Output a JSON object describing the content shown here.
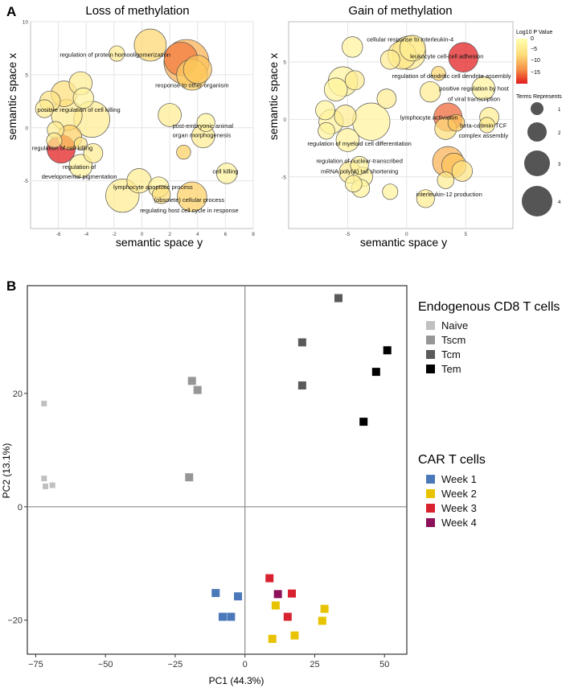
{
  "panels": {
    "A": "A",
    "B": "B"
  },
  "colors": {
    "bubble_low": "#ffffb2",
    "bubble_mid": "#fecc5c",
    "bubble_high": "#e31a1c",
    "bubble_stroke": "#555555",
    "panel_bg": "#ffffff",
    "grid": "#e4e4e4",
    "size_legend_fill": "#555555"
  },
  "chart_data": [
    {
      "id": "loss",
      "type": "scatter",
      "title": "Loss of methylation",
      "xlabel": "semantic space y",
      "ylabel": "semantic space x",
      "xlim": [
        -8,
        8
      ],
      "ylim": [
        -9.5,
        10
      ],
      "xticks": [
        -6,
        -4,
        -2,
        0,
        2,
        4,
        6,
        8
      ],
      "yticks": [
        -5,
        0,
        5,
        10
      ],
      "points": [
        {
          "x": 0.6,
          "y": 7.8,
          "size": 2.5,
          "p": -6
        },
        {
          "x": -1.8,
          "y": 7.0,
          "size": 1.2,
          "p": -3
        },
        {
          "x": 3.2,
          "y": 6.2,
          "size": 3.5,
          "p": -9
        },
        {
          "x": 2.8,
          "y": 6.5,
          "size": 2.6,
          "p": -12
        },
        {
          "x": 4.0,
          "y": 5.5,
          "size": 2.2,
          "p": -8
        },
        {
          "x": 3.6,
          "y": 5.0,
          "size": 2.4,
          "p": -7
        },
        {
          "x": -4.4,
          "y": 4.2,
          "size": 1.8,
          "p": -3
        },
        {
          "x": -6.6,
          "y": 2.5,
          "size": 1.6,
          "p": -4
        },
        {
          "x": -5.6,
          "y": 3.2,
          "size": 2.0,
          "p": -5
        },
        {
          "x": -7.0,
          "y": 1.8,
          "size": 1.4,
          "p": -3
        },
        {
          "x": -5.4,
          "y": 1.2,
          "size": 2.4,
          "p": -3
        },
        {
          "x": -3.6,
          "y": 0.8,
          "size": 2.8,
          "p": -3
        },
        {
          "x": -4.2,
          "y": 2.8,
          "size": 1.6,
          "p": -2
        },
        {
          "x": -6.2,
          "y": -0.2,
          "size": 1.3,
          "p": -3
        },
        {
          "x": -5.8,
          "y": -2.0,
          "size": 2.2,
          "p": -17
        },
        {
          "x": -5.2,
          "y": -0.9,
          "size": 1.9,
          "p": -7
        },
        {
          "x": -4.4,
          "y": -3.6,
          "size": 1.8,
          "p": -2
        },
        {
          "x": -3.5,
          "y": -2.4,
          "size": 1.5,
          "p": -3
        },
        {
          "x": -6.3,
          "y": -1.2,
          "size": 1.2,
          "p": -3
        },
        {
          "x": 2.0,
          "y": 1.2,
          "size": 1.8,
          "p": -3
        },
        {
          "x": 4.6,
          "y": 0.5,
          "size": 1.4,
          "p": -2
        },
        {
          "x": 4.4,
          "y": -0.8,
          "size": 1.8,
          "p": -3
        },
        {
          "x": 3.0,
          "y": -2.3,
          "size": 1.1,
          "p": -7
        },
        {
          "x": 6.1,
          "y": -4.3,
          "size": 1.6,
          "p": -2
        },
        {
          "x": -0.2,
          "y": -5.0,
          "size": 1.9,
          "p": -3
        },
        {
          "x": 1.2,
          "y": -5.6,
          "size": 1.6,
          "p": -2
        },
        {
          "x": 1.4,
          "y": -6.3,
          "size": 1.4,
          "p": -5
        },
        {
          "x": -1.4,
          "y": -6.4,
          "size": 2.6,
          "p": -3
        },
        {
          "x": 3.6,
          "y": -6.5,
          "size": 2.3,
          "p": -7
        },
        {
          "x": -4.4,
          "y": -1.5,
          "size": 1.0,
          "p": -4
        }
      ],
      "labels": [
        {
          "text": "regulation of protein homooligomerization",
          "x": -5.9,
          "y": 6.7,
          "align": "start"
        },
        {
          "text": "response to other organism",
          "x": 3.6,
          "y": 3.8,
          "align": "middle"
        },
        {
          "text": "positive regulation of cell killing",
          "x": -7.5,
          "y": 1.5,
          "align": "start"
        },
        {
          "text": "post-embryonic animal",
          "x": 2.2,
          "y": 0.0,
          "align": "start"
        },
        {
          "text": "organ morphogenesis",
          "x": 2.2,
          "y": -0.9,
          "align": "start"
        },
        {
          "text": "regulation of cell killing",
          "x": -7.9,
          "y": -2.1,
          "align": "start"
        },
        {
          "text": "regulation of",
          "x": -4.5,
          "y": -3.9,
          "align": "middle"
        },
        {
          "text": "developmental pigmentation",
          "x": -4.5,
          "y": -4.8,
          "align": "middle"
        },
        {
          "text": "cell killing",
          "x": 6.0,
          "y": -4.3,
          "align": "middle"
        },
        {
          "text": "lymphocyte apoptotic process",
          "x": 0.8,
          "y": -5.8,
          "align": "middle"
        },
        {
          "text": "(obsolete) cellular process",
          "x": 3.4,
          "y": -7.0,
          "align": "middle"
        },
        {
          "text": "regulating host cell cycle in response",
          "x": 3.4,
          "y": -8.0,
          "align": "middle"
        }
      ]
    },
    {
      "id": "gain",
      "type": "scatter",
      "title": "Gain of methylation",
      "xlabel": "semantic space y",
      "ylabel": "semantic space x",
      "xlim": [
        -10,
        9
      ],
      "ylim": [
        -9.5,
        8.5
      ],
      "xticks": [
        -5,
        0,
        5
      ],
      "yticks": [
        -5,
        0,
        5
      ],
      "points": [
        {
          "x": -4.6,
          "y": 6.3,
          "size": 1.6,
          "p": -2
        },
        {
          "x": 0.5,
          "y": 6.2,
          "size": 2.0,
          "p": -3
        },
        {
          "x": -1.4,
          "y": 5.2,
          "size": 1.5,
          "p": -3
        },
        {
          "x": -0.4,
          "y": 5.6,
          "size": 2.2,
          "p": -4
        },
        {
          "x": 0.2,
          "y": 5.8,
          "size": 2.6,
          "p": -3
        },
        {
          "x": 4.8,
          "y": 5.4,
          "size": 2.3,
          "p": -17
        },
        {
          "x": 2.7,
          "y": 4.0,
          "size": 1.1,
          "p": -6
        },
        {
          "x": -5.4,
          "y": 3.3,
          "size": 2.3,
          "p": -2
        },
        {
          "x": -6.0,
          "y": 2.6,
          "size": 1.8,
          "p": -2
        },
        {
          "x": -4.4,
          "y": 3.4,
          "size": 1.5,
          "p": -3
        },
        {
          "x": -1.7,
          "y": 1.8,
          "size": 1.5,
          "p": -3
        },
        {
          "x": 2.0,
          "y": 2.4,
          "size": 1.6,
          "p": -3
        },
        {
          "x": 6.5,
          "y": 2.7,
          "size": 1.8,
          "p": -2
        },
        {
          "x": -6.9,
          "y": 0.8,
          "size": 1.5,
          "p": -2
        },
        {
          "x": -6.4,
          "y": -0.2,
          "size": 1.9,
          "p": -2
        },
        {
          "x": -5.2,
          "y": 0.3,
          "size": 1.7,
          "p": -3
        },
        {
          "x": -3.0,
          "y": -0.2,
          "size": 2.9,
          "p": -2
        },
        {
          "x": -5.0,
          "y": -1.8,
          "size": 1.8,
          "p": -2
        },
        {
          "x": -6.8,
          "y": -1.0,
          "size": 1.3,
          "p": -2
        },
        {
          "x": 3.5,
          "y": 0.2,
          "size": 2.2,
          "p": -13
        },
        {
          "x": 3.3,
          "y": -0.8,
          "size": 1.7,
          "p": -5
        },
        {
          "x": 4.2,
          "y": -0.3,
          "size": 1.3,
          "p": -8
        },
        {
          "x": 7.0,
          "y": 0.2,
          "size": 1.5,
          "p": -3
        },
        {
          "x": 6.8,
          "y": -0.5,
          "size": 1.2,
          "p": -3
        },
        {
          "x": -4.0,
          "y": -4.0,
          "size": 1.4,
          "p": -2
        },
        {
          "x": -4.8,
          "y": -4.6,
          "size": 1.7,
          "p": -3
        },
        {
          "x": -3.7,
          "y": -5.0,
          "size": 1.5,
          "p": -2
        },
        {
          "x": -4.5,
          "y": -5.6,
          "size": 1.3,
          "p": -2
        },
        {
          "x": -3.9,
          "y": -6.0,
          "size": 1.4,
          "p": -2
        },
        {
          "x": 3.5,
          "y": -3.7,
          "size": 2.4,
          "p": -9
        },
        {
          "x": 4.0,
          "y": -4.0,
          "size": 1.9,
          "p": -8
        },
        {
          "x": 4.7,
          "y": -4.5,
          "size": 1.6,
          "p": -4
        },
        {
          "x": 3.3,
          "y": -5.3,
          "size": 1.3,
          "p": -3
        },
        {
          "x": 1.6,
          "y": -6.9,
          "size": 1.4,
          "p": -3
        },
        {
          "x": -1.4,
          "y": -6.3,
          "size": 1.2,
          "p": -2
        }
      ],
      "labels": [
        {
          "text": "cellular response to interleukin-4",
          "x": 0.3,
          "y": 6.8,
          "align": "middle"
        },
        {
          "text": "leukocyte cell-cell adhesion",
          "x": 3.4,
          "y": 5.3,
          "align": "middle"
        },
        {
          "text": "regulation of dendritic cell dendrite assembly",
          "x": 3.8,
          "y": 3.6,
          "align": "middle"
        },
        {
          "text": "positive regulation by host",
          "x": 5.7,
          "y": 2.5,
          "align": "middle"
        },
        {
          "text": "of viral transcription",
          "x": 5.7,
          "y": 1.6,
          "align": "middle"
        },
        {
          "text": "lymphocyte activation",
          "x": 1.9,
          "y": 0.0,
          "align": "middle"
        },
        {
          "text": "beta-catenin-TCF",
          "x": 6.5,
          "y": -0.7,
          "align": "middle"
        },
        {
          "text": "complex assembly",
          "x": 6.5,
          "y": -1.6,
          "align": "middle"
        },
        {
          "text": "regulation of myeloid cell differentiation",
          "x": -4.0,
          "y": -2.3,
          "align": "middle"
        },
        {
          "text": "regulation of nuclear-transcribed",
          "x": -4.0,
          "y": -3.8,
          "align": "middle"
        },
        {
          "text": "mRNA poly(A) tail shortening",
          "x": -4.0,
          "y": -4.7,
          "align": "middle"
        },
        {
          "text": "interleukin-12 production",
          "x": 3.6,
          "y": -6.7,
          "align": "middle"
        }
      ]
    },
    {
      "id": "pca",
      "type": "scatter",
      "title": "",
      "xlabel": "PC1 (44.3%)",
      "ylabel": "PC2 (13.1%)",
      "xlim": [
        -78,
        58
      ],
      "ylim": [
        -26,
        39
      ],
      "xticks": [
        -75,
        -50,
        -25,
        0,
        25,
        50
      ],
      "yticks": [
        -20,
        0,
        20
      ],
      "series": [
        {
          "name": "Naive",
          "group": "endogenous",
          "color": "#c0c0c0",
          "points": [
            [
              -72,
              18.2
            ],
            [
              -72,
              5
            ],
            [
              -71.5,
              3.6
            ],
            [
              -69,
              3.8
            ]
          ]
        },
        {
          "name": "Tscm",
          "group": "endogenous",
          "color": "#969696",
          "points": [
            [
              -19,
              22.2
            ],
            [
              -17,
              20.6
            ],
            [
              -20,
              5.2
            ]
          ]
        },
        {
          "name": "Tcm",
          "group": "endogenous",
          "color": "#5a5a5a",
          "points": [
            [
              33.5,
              36.8
            ],
            [
              20.5,
              29
            ],
            [
              20.5,
              21.4
            ]
          ]
        },
        {
          "name": "Tem",
          "group": "endogenous",
          "color": "#000000",
          "points": [
            [
              51,
              27.6
            ],
            [
              47,
              23.8
            ],
            [
              42.5,
              15
            ]
          ]
        },
        {
          "name": "Week 1",
          "group": "car",
          "color": "#4a78b8",
          "points": [
            [
              -10.5,
              -15.2
            ],
            [
              -8,
              -19.4
            ],
            [
              -5,
              -19.4
            ],
            [
              -2.5,
              -15.8
            ]
          ]
        },
        {
          "name": "Week 2",
          "group": "car",
          "color": "#e8c400",
          "points": [
            [
              11,
              -17.4
            ],
            [
              28.5,
              -18
            ],
            [
              27.7,
              -20.1
            ],
            [
              17.8,
              -22.7
            ],
            [
              9.8,
              -23.3
            ]
          ]
        },
        {
          "name": "Week 3",
          "group": "car",
          "color": "#d92230",
          "points": [
            [
              8.8,
              -12.6
            ],
            [
              16.8,
              -15.3
            ],
            [
              15.3,
              -19.4
            ]
          ]
        },
        {
          "name": "Week 4",
          "group": "car",
          "color": "#8c1158",
          "points": [
            [
              11.8,
              -15.4
            ]
          ]
        }
      ]
    }
  ],
  "legend_pvalue": {
    "title": "Log10 P Value",
    "ticks": [
      "0",
      "−5",
      "−10",
      "−15"
    ]
  },
  "legend_size": {
    "title": "Terms Represents",
    "items": [
      {
        "label": "1",
        "size": 1
      },
      {
        "label": "2",
        "size": 2
      },
      {
        "label": "3",
        "size": 3
      },
      {
        "label": "4",
        "size": 4
      }
    ]
  },
  "legend_pca": {
    "endogenous_title": "Endogenous CD8 T cells",
    "car_title": "CAR T cells"
  }
}
